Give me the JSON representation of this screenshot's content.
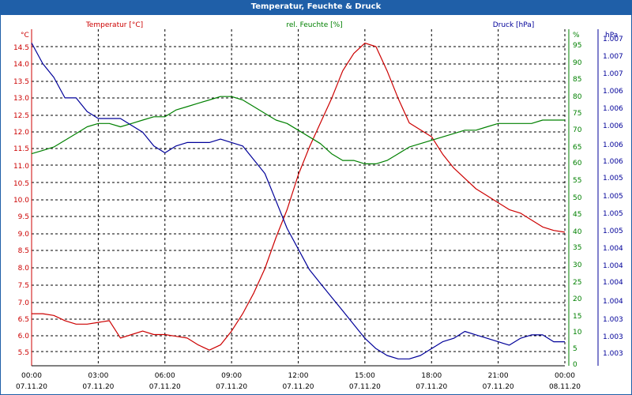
{
  "window": {
    "title": "Temperatur, Feuchte & Druck"
  },
  "colors": {
    "temperature": "#cc0000",
    "humidity": "#008000",
    "pressure": "#000099",
    "grid": "#000000",
    "titlebar": "#1f5fa8"
  },
  "chart_data": {
    "type": "line",
    "grid": true,
    "axes": {
      "left": {
        "label": "Temperatur [°C]",
        "unit": "°C",
        "range": [
          5.2,
          14.9
        ],
        "ticks": [
          "5.5",
          "6.0",
          "6.5",
          "7.0",
          "7.5",
          "8.0",
          "8.5",
          "9.0",
          "9.5",
          "10.0",
          "10.5",
          "11.0",
          "11.5",
          "12.0",
          "12.5",
          "13.0",
          "13.5",
          "14.0",
          "14.5"
        ]
      },
      "right1": {
        "label": "rel. Feuchte [%]",
        "unit": "%",
        "range": [
          0,
          100
        ],
        "ticks": [
          "0",
          "5",
          "10",
          "15",
          "20",
          "25",
          "30",
          "35",
          "40",
          "45",
          "50",
          "55",
          "60",
          "65",
          "70",
          "75",
          "80",
          "85",
          "90",
          "95",
          "%"
        ]
      },
      "right2": {
        "label": "Druck [hPa]",
        "unit": "hPa",
        "range": [
          1002.6,
          1007.5
        ],
        "ticks": [
          "1.003",
          "1.003",
          "1.003",
          "1.004",
          "1.004",
          "1.004",
          "1.004",
          "1.005",
          "1.005",
          "1.005",
          "1.005",
          "1.006",
          "1.006",
          "1.006",
          "1.006",
          "1.006",
          "1.007",
          "1.007",
          "1.007",
          "1.007"
        ]
      },
      "x": {
        "ticks": [
          {
            "time": "00:00",
            "date": "07.11.20"
          },
          {
            "time": "03:00",
            "date": "07.11.20"
          },
          {
            "time": "06:00",
            "date": "07.11.20"
          },
          {
            "time": "09:00",
            "date": "07.11.20"
          },
          {
            "time": "12:00",
            "date": "07.11.20"
          },
          {
            "time": "15:00",
            "date": "07.11.20"
          },
          {
            "time": "18:00",
            "date": "07.11.20"
          },
          {
            "time": "21:00",
            "date": "07.11.20"
          },
          {
            "time": "00:00",
            "date": "08.11.20"
          }
        ]
      }
    },
    "series": [
      {
        "name": "Temperatur [°C]",
        "axis": "left",
        "unit": "°C",
        "x_hours": [
          0,
          0.5,
          1,
          1.5,
          2,
          2.5,
          3,
          3.5,
          4,
          4.5,
          5,
          5.5,
          6,
          6.5,
          7,
          7.5,
          8,
          8.5,
          9,
          9.5,
          10,
          10.5,
          11,
          11.5,
          12,
          12.5,
          13,
          13.5,
          14,
          14.5,
          15,
          15.5,
          16,
          16.5,
          17,
          17.5,
          18,
          18.5,
          19,
          19.5,
          20,
          20.5,
          21,
          21.5,
          22,
          22.5,
          23,
          23.5,
          24
        ],
        "values": [
          6.7,
          6.7,
          6.65,
          6.5,
          6.4,
          6.4,
          6.45,
          6.5,
          6.0,
          6.1,
          6.2,
          6.1,
          6.1,
          6.05,
          6.0,
          5.8,
          5.65,
          5.8,
          6.2,
          6.7,
          7.3,
          8.0,
          8.9,
          9.7,
          10.7,
          11.5,
          12.2,
          12.9,
          13.7,
          14.2,
          14.5,
          14.4,
          13.7,
          12.9,
          12.2,
          12.0,
          11.8,
          11.3,
          10.9,
          10.6,
          10.3,
          10.1,
          9.9,
          9.7,
          9.6,
          9.4,
          9.2,
          9.1,
          9.05
        ]
      },
      {
        "name": "rel. Feuchte [%]",
        "axis": "right1",
        "unit": "%",
        "x_hours": [
          0,
          0.5,
          1,
          1.5,
          2,
          2.5,
          3,
          3.5,
          4,
          4.5,
          5,
          5.5,
          6,
          6.5,
          7,
          7.5,
          8,
          8.5,
          9,
          9.5,
          10,
          10.5,
          11,
          11.5,
          12,
          12.5,
          13,
          13.5,
          14,
          14.5,
          15,
          15.5,
          16,
          16.5,
          17,
          17.5,
          18,
          18.5,
          19,
          19.5,
          20,
          20.5,
          21,
          21.5,
          22,
          22.5,
          23,
          23.5,
          24
        ],
        "values": [
          63,
          64,
          65,
          67,
          69,
          71,
          72,
          72,
          71,
          72,
          73,
          74,
          74,
          76,
          77,
          78,
          79,
          80,
          80,
          79,
          77,
          75,
          73,
          72,
          70,
          68,
          66,
          63,
          61,
          61,
          60,
          60,
          61,
          63,
          65,
          66,
          67,
          68,
          69,
          70,
          70,
          71,
          72,
          72,
          72,
          72,
          73,
          73,
          73
        ]
      },
      {
        "name": "Druck [hPa]",
        "axis": "right2",
        "unit": "hPa",
        "x_hours": [
          0,
          0.5,
          1,
          1.5,
          2,
          2.5,
          3,
          3.5,
          4,
          4.5,
          5,
          5.5,
          6,
          6.5,
          7,
          7.5,
          8,
          8.5,
          9,
          9.5,
          10,
          10.5,
          11,
          11.5,
          12,
          12.5,
          13,
          13.5,
          14,
          14.5,
          15,
          15.5,
          16,
          16.5,
          17,
          17.5,
          18,
          18.5,
          19,
          19.5,
          20,
          20.5,
          21,
          21.5,
          22,
          22.5,
          23,
          23.5,
          24
        ],
        "values": [
          1007.3,
          1007.0,
          1006.8,
          1006.5,
          1006.5,
          1006.3,
          1006.2,
          1006.2,
          1006.2,
          1006.1,
          1006.0,
          1005.8,
          1005.7,
          1005.8,
          1005.85,
          1005.85,
          1005.85,
          1005.9,
          1005.85,
          1005.8,
          1005.6,
          1005.4,
          1005.0,
          1004.6,
          1004.3,
          1004.0,
          1003.8,
          1003.6,
          1003.4,
          1003.2,
          1003.0,
          1002.85,
          1002.75,
          1002.7,
          1002.7,
          1002.75,
          1002.85,
          1002.95,
          1003.0,
          1003.1,
          1003.05,
          1003.0,
          1002.95,
          1002.9,
          1003.0,
          1003.05,
          1003.05,
          1002.95,
          1002.95
        ]
      }
    ]
  }
}
